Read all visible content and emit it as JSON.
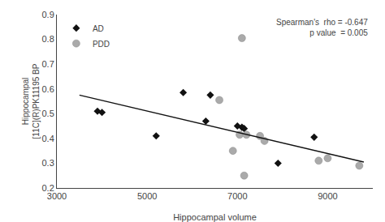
{
  "chart_data": {
    "type": "scatter",
    "xlabel": "Hippocampal volume",
    "ylabel": [
      "Hippocampal",
      "[11C](R)PK11195 BP"
    ],
    "annotation": [
      "Spearman's  rho = -0.647",
      "p value  = 0.005"
    ],
    "series": [
      {
        "name": "AD",
        "type": "scatter",
        "marker": "diamond",
        "color": "#111111",
        "x": [
          3900,
          4000,
          5200,
          5800,
          6300,
          6400,
          7000,
          7100,
          7150,
          7900,
          8700
        ],
        "values": [
          0.51,
          0.505,
          0.41,
          0.585,
          0.47,
          0.575,
          0.45,
          0.445,
          0.44,
          0.3,
          0.405
        ]
      },
      {
        "name": "PDD",
        "type": "scatter",
        "marker": "circle",
        "color": "#aaaaaa",
        "x": [
          6600,
          6900,
          7050,
          7100,
          7150,
          7200,
          7500,
          7600,
          8800,
          9000,
          9700
        ],
        "values": [
          0.555,
          0.35,
          0.415,
          0.805,
          0.25,
          0.415,
          0.41,
          0.39,
          0.31,
          0.32,
          0.29
        ]
      },
      {
        "type": "line",
        "line_style": "solid",
        "color": "#111111",
        "x": [
          3500,
          9800
        ],
        "values": [
          0.575,
          0.305
        ]
      }
    ],
    "xlim": [
      3000,
      10000
    ],
    "ylim": [
      0.2,
      0.9
    ],
    "xticks": [
      3000,
      5000,
      7000,
      9000
    ],
    "yticks": [
      0.2,
      0.3,
      0.4,
      0.5,
      0.6,
      0.7,
      0.8,
      0.9
    ],
    "grid": false,
    "legend": "upper left"
  }
}
